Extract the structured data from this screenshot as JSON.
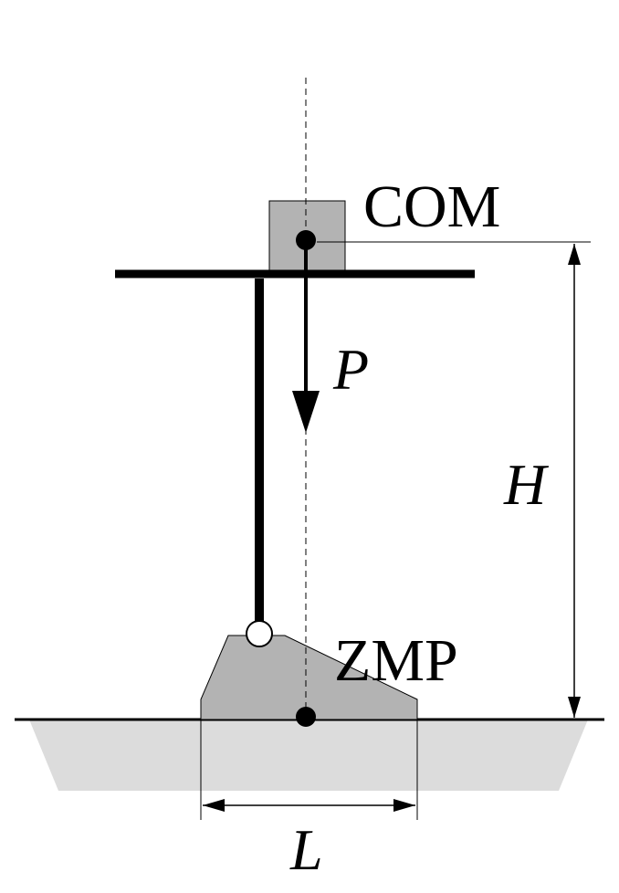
{
  "labels": {
    "com": "COM",
    "zmp": "ZMP",
    "force": "P",
    "height": "H",
    "length": "L"
  },
  "colors": {
    "ink": "#000000",
    "body_fill": "#b3b3b3",
    "ground_fill": "#dcdcdc",
    "background": "#ffffff"
  }
}
